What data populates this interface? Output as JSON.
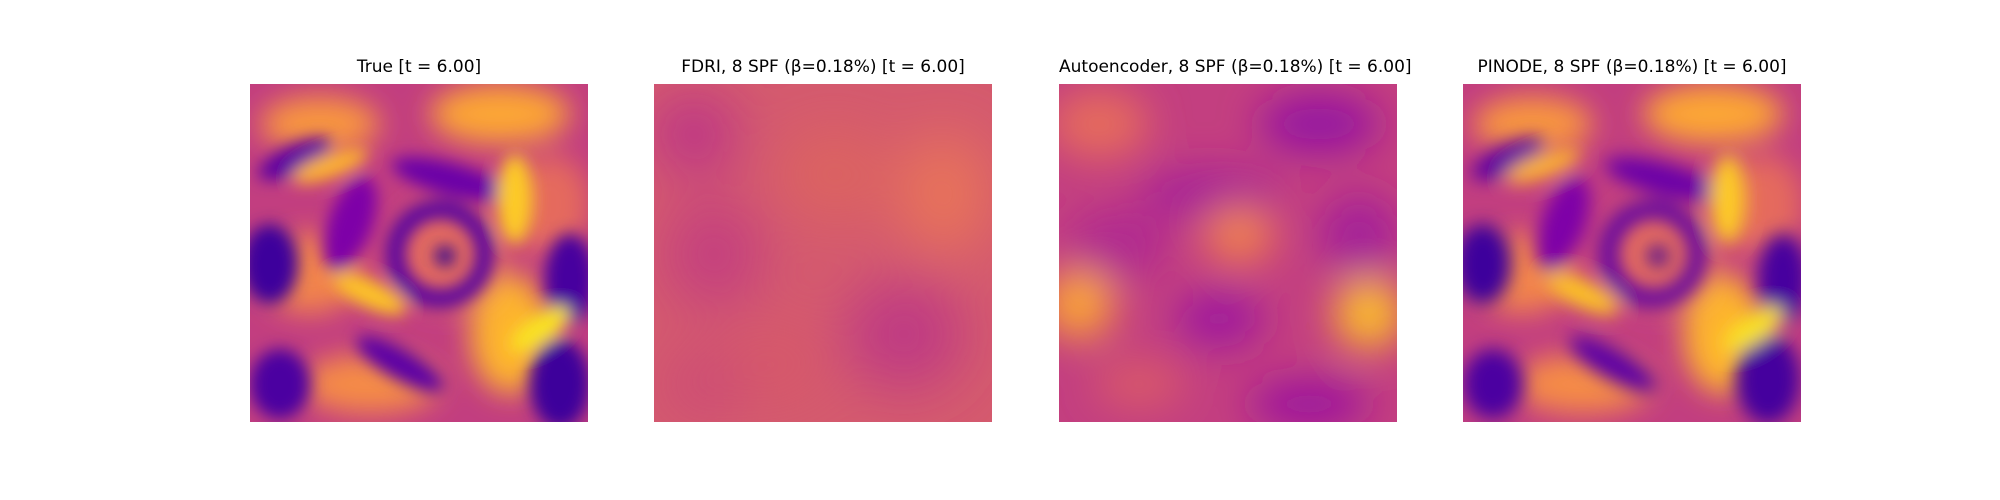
{
  "figure": {
    "colormap": "plasma",
    "panels": [
      {
        "id": "true",
        "title": "True [t = 6.00]"
      },
      {
        "id": "fdri",
        "title": "FDRI, 8 SPF (β=0.18%) [t = 6.00]"
      },
      {
        "id": "autoencoder",
        "title": "Autoencoder, 8 SPF (β=0.18%) [t = 6.00]"
      },
      {
        "id": "pinode",
        "title": "PINODE, 8 SPF (β=0.18%) [t = 6.00]"
      }
    ]
  }
}
